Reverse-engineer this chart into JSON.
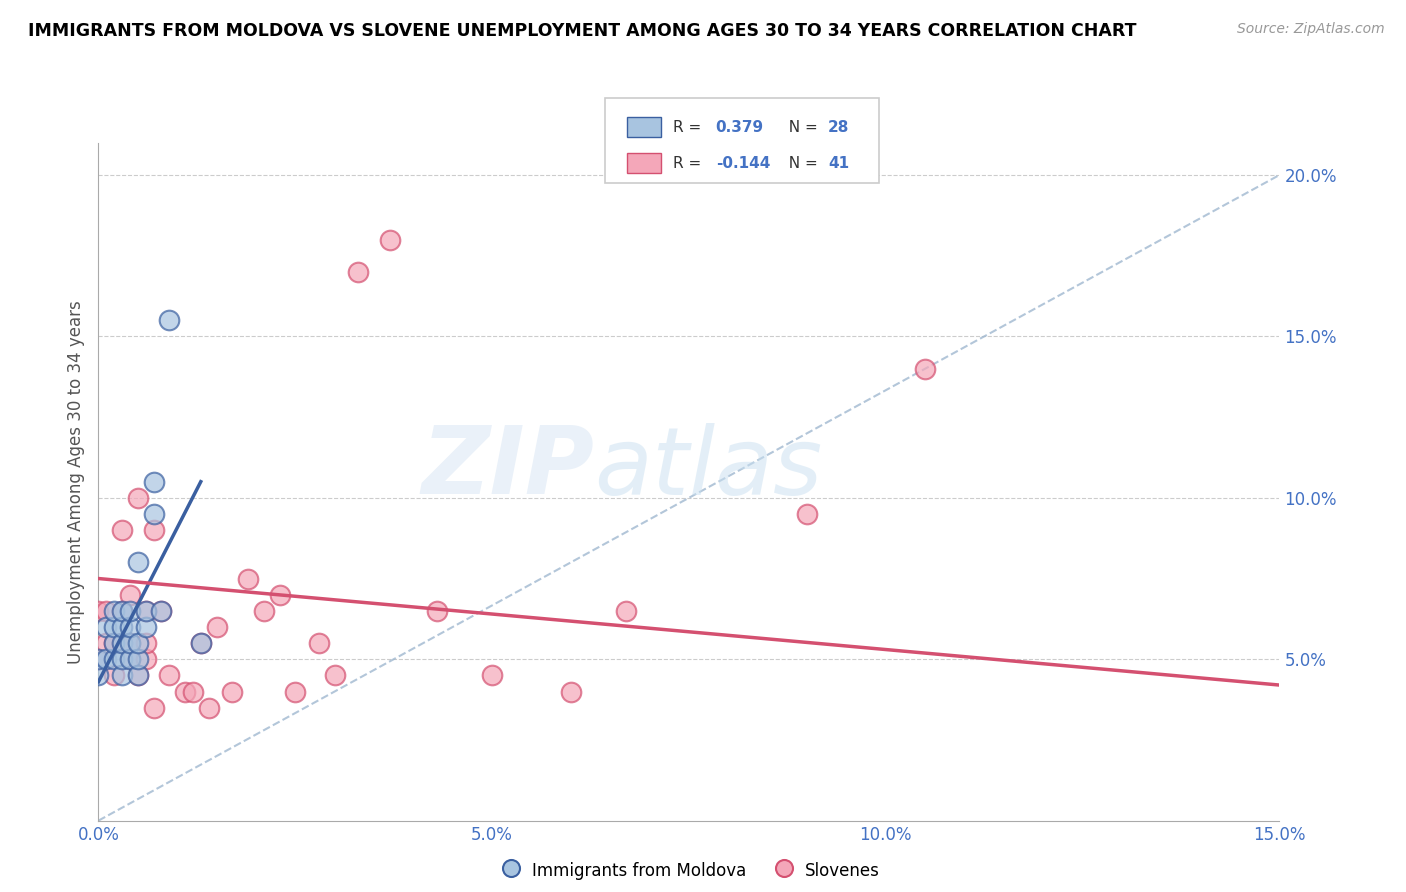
{
  "title": "IMMIGRANTS FROM MOLDOVA VS SLOVENE UNEMPLOYMENT AMONG AGES 30 TO 34 YEARS CORRELATION CHART",
  "source": "Source: ZipAtlas.com",
  "ylabel": "Unemployment Among Ages 30 to 34 years",
  "xlim": [
    0.0,
    0.15
  ],
  "ylim": [
    0.0,
    0.21
  ],
  "xticks": [
    0.0,
    0.025,
    0.05,
    0.075,
    0.1,
    0.125,
    0.15
  ],
  "xticklabels": [
    "0.0%",
    "",
    "5.0%",
    "",
    "10.0%",
    "",
    "15.0%"
  ],
  "yticks": [
    0.0,
    0.05,
    0.1,
    0.15,
    0.2
  ],
  "yticklabels": [
    "",
    "5.0%",
    "10.0%",
    "15.0%",
    "20.0%"
  ],
  "color_blue": "#a8c4e0",
  "color_pink": "#f4a7b9",
  "line_blue": "#3a5fa0",
  "line_pink": "#d45070",
  "diagonal_color": "#a0b8d0",
  "watermark_zip": "ZIP",
  "watermark_atlas": "atlas",
  "moldova_x": [
    0.0,
    0.0,
    0.001,
    0.001,
    0.002,
    0.002,
    0.002,
    0.002,
    0.003,
    0.003,
    0.003,
    0.003,
    0.003,
    0.004,
    0.004,
    0.004,
    0.004,
    0.005,
    0.005,
    0.005,
    0.005,
    0.006,
    0.006,
    0.007,
    0.007,
    0.008,
    0.009,
    0.013
  ],
  "moldova_y": [
    0.045,
    0.05,
    0.05,
    0.06,
    0.05,
    0.055,
    0.06,
    0.065,
    0.045,
    0.05,
    0.055,
    0.06,
    0.065,
    0.05,
    0.055,
    0.06,
    0.065,
    0.045,
    0.05,
    0.055,
    0.08,
    0.06,
    0.065,
    0.095,
    0.105,
    0.065,
    0.155,
    0.055
  ],
  "slovene_x": [
    0.0,
    0.0,
    0.001,
    0.001,
    0.002,
    0.002,
    0.003,
    0.003,
    0.003,
    0.004,
    0.004,
    0.004,
    0.005,
    0.005,
    0.006,
    0.006,
    0.006,
    0.007,
    0.007,
    0.008,
    0.009,
    0.011,
    0.012,
    0.013,
    0.014,
    0.015,
    0.017,
    0.019,
    0.021,
    0.023,
    0.025,
    0.028,
    0.03,
    0.033,
    0.037,
    0.043,
    0.05,
    0.06,
    0.067,
    0.09,
    0.105
  ],
  "slovene_y": [
    0.05,
    0.065,
    0.055,
    0.065,
    0.045,
    0.055,
    0.055,
    0.065,
    0.09,
    0.05,
    0.055,
    0.07,
    0.045,
    0.1,
    0.05,
    0.055,
    0.065,
    0.035,
    0.09,
    0.065,
    0.045,
    0.04,
    0.04,
    0.055,
    0.035,
    0.06,
    0.04,
    0.075,
    0.065,
    0.07,
    0.04,
    0.055,
    0.045,
    0.17,
    0.18,
    0.065,
    0.045,
    0.04,
    0.065,
    0.095,
    0.14
  ],
  "blue_line_x": [
    0.0,
    0.013
  ],
  "blue_line_y_start": 0.043,
  "blue_line_y_end": 0.105,
  "pink_line_x": [
    0.0,
    0.15
  ],
  "pink_line_y_start": 0.075,
  "pink_line_y_end": 0.042
}
